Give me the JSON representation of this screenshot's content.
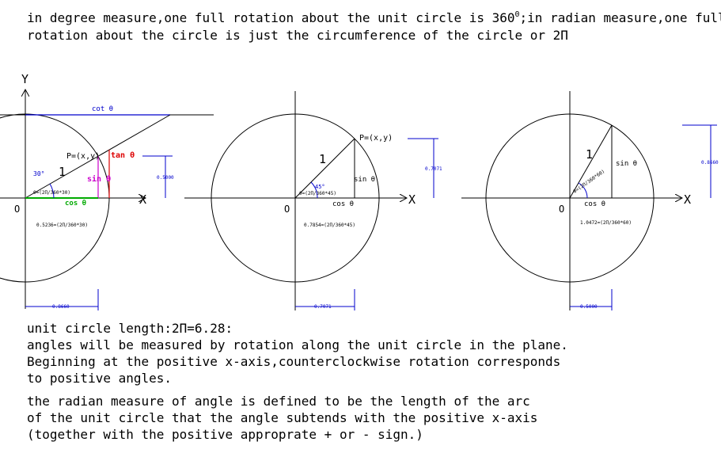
{
  "intro": {
    "line1_a": "in degree measure,one full rotation about the unit circle is 360",
    "line1_sup": "0",
    "line1_b": ";in radian measure,one full",
    "line2": "rotation about the circle is just the circumference of the circle or 2Π"
  },
  "figure1": {
    "y_axis": "Y",
    "x_axis": "X",
    "origin": "O",
    "cot_label": "cot θ",
    "point_label": "P=(x,y)",
    "tan_label": "tan θ",
    "radius_label": "1",
    "sin_label": "sin θ",
    "cos_label": "cos θ",
    "angle_deg": "30°",
    "angle_rad": "θ=(2Π/360*30)",
    "arc_length": "0.5236=(2Π/360*30)",
    "height_dim": "0.5000",
    "width_dim": "0.8660"
  },
  "figure2": {
    "x_axis": "X",
    "origin": "O",
    "point_label": "P=(x,y)",
    "radius_label": "1",
    "sin_label": "sin θ",
    "cos_label": "cos θ",
    "angle_deg": "45°",
    "angle_rad": "θ=(2Π/360*45)",
    "arc_length": "0.7854=(2Π/360*45)",
    "height_dim": "0.7071",
    "width_dim": "0.7071"
  },
  "figure3": {
    "x_axis": "X",
    "origin": "O",
    "radius_label": "1",
    "sin_label": "sin θ",
    "cos_label": "cos θ",
    "angle_rad": "θ=(2Π/360*60)",
    "arc_length": "1.0472=(2Π/360*60)",
    "height_dim": "0.8660",
    "width_dim": "0.5000"
  },
  "bottom": {
    "line1": "unit circle length:2Π=6.28:",
    "line2": "angles will be measured by rotation along the unit circle in the plane.",
    "line3": "Beginning at the positive x-axis,counterclockwise rotation corresponds",
    "line4": "to positive angles.",
    "line5": "the radian measure of angle is defined to be the length of the arc",
    "line6": "of the unit circle that the angle subtends with the positive x-axis",
    "line7": "(together with the positive approprate + or - sign.)"
  },
  "colors": {
    "cot": "#0000cc",
    "tan": "#dd0000",
    "sin": "#cc00cc",
    "cos": "#00aa00",
    "angle": "#0000cc",
    "dimension": "#0000cc"
  }
}
